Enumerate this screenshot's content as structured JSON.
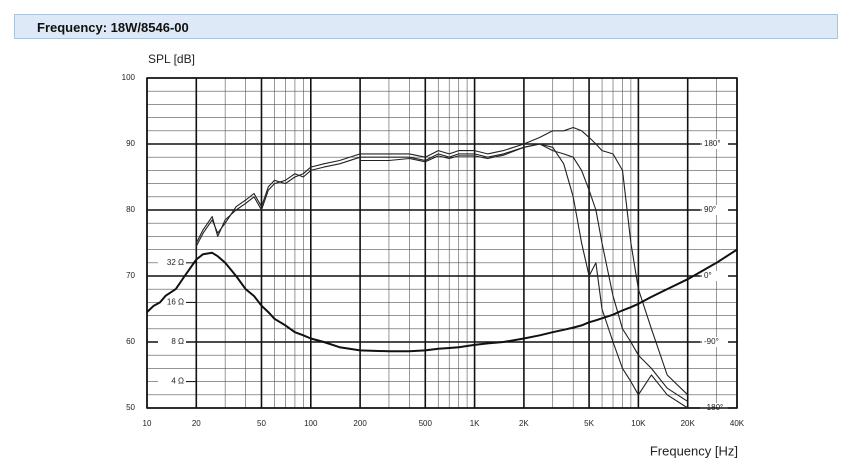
{
  "header": {
    "title": "Frequency: 18W/8546-00"
  },
  "chart_data": {
    "type": "line",
    "y_label": "SPL [dB]",
    "x_label": "Frequency [Hz]",
    "xlog": true,
    "grid": true,
    "xlim": [
      10,
      40000
    ],
    "xticks": [
      10,
      20,
      50,
      100,
      200,
      500,
      {
        "value": 1000,
        "label": "1K"
      },
      {
        "value": 2000,
        "label": "2K"
      },
      {
        "value": 5000,
        "label": "5K"
      },
      {
        "value": 10000,
        "label": "10K"
      },
      {
        "value": 20000,
        "label": "20K"
      },
      {
        "value": 40000,
        "label": "40K"
      }
    ],
    "ylim": [
      50,
      100
    ],
    "yticks": [
      50,
      60,
      70,
      80,
      90,
      100
    ],
    "y2log": true,
    "y2lim": [
      2.52,
      812
    ],
    "y2ticks": [
      {
        "value": 4,
        "label": "4 Ω"
      },
      {
        "value": 8,
        "label": "8 Ω"
      },
      {
        "value": 16,
        "label": "16 Ω"
      },
      {
        "value": 32,
        "label": "32 Ω"
      }
    ],
    "y3lim": [
      -180,
      270
    ],
    "y3ticks": [
      {
        "value": -180,
        "label": "-180°"
      },
      {
        "value": -90,
        "label": "-90°"
      },
      {
        "value": 0,
        "label": "0°"
      },
      {
        "value": 90,
        "label": "90°"
      },
      {
        "value": 180,
        "label": "180°"
      }
    ],
    "x": [
      10,
      11,
      12,
      13,
      15,
      17,
      20,
      22,
      25,
      27,
      30,
      35,
      40,
      45,
      50,
      55,
      60,
      70,
      80,
      90,
      100,
      120,
      150,
      200,
      300,
      400,
      500,
      600,
      700,
      800,
      1000,
      1200,
      1500,
      2000,
      2500,
      3000,
      3500,
      4000,
      4500,
      5000,
      5500,
      6000,
      7000,
      8000,
      9000,
      10000,
      12000,
      15000,
      20000,
      30000,
      40000
    ],
    "series": [
      {
        "color": "#222222",
        "values": [
          null,
          null,
          null,
          null,
          null,
          null,
          75,
          77,
          79,
          76,
          78.5,
          80,
          81,
          82,
          80,
          83,
          84,
          84.5,
          85.5,
          85,
          86,
          86.5,
          87,
          88,
          88,
          88,
          87.5,
          88.5,
          88,
          88.5,
          88.5,
          88,
          88.5,
          89.5,
          90,
          89.5,
          87,
          82,
          75,
          70,
          72,
          65,
          60,
          56,
          54,
          52,
          55,
          52,
          50,
          null,
          null
        ]
      },
      {
        "color": "#222222",
        "values": [
          null,
          null,
          null,
          null,
          null,
          null,
          74.5,
          76.5,
          78.5,
          76.5,
          78,
          80.5,
          81.5,
          82.5,
          80.5,
          83.5,
          84.5,
          84,
          85,
          85.5,
          86.5,
          87,
          87.5,
          88.5,
          88.5,
          88.5,
          88,
          89,
          88.5,
          89,
          89,
          88.5,
          89,
          90,
          91,
          92,
          92,
          92.5,
          92,
          91,
          90,
          89,
          88.5,
          86,
          75,
          68,
          62,
          55,
          52,
          null,
          null
        ]
      },
      {
        "color": "#222222",
        "values": [
          null,
          null,
          null,
          null,
          null,
          null,
          null,
          null,
          null,
          null,
          null,
          null,
          null,
          null,
          null,
          null,
          null,
          null,
          null,
          null,
          null,
          null,
          null,
          87.5,
          87.5,
          87.8,
          87.3,
          88.2,
          87.8,
          88.2,
          88.2,
          87.8,
          88.3,
          89.5,
          90,
          89,
          88.5,
          88,
          86,
          83,
          80,
          75,
          67,
          62,
          60,
          58,
          56,
          53,
          51,
          null,
          null
        ]
      },
      {
        "color": "#111111",
        "axis": "y2",
        "values": [
          13.5,
          15.1,
          16,
          18,
          20.2,
          25.4,
          33.9,
          37.2,
          38.1,
          35.9,
          32,
          25.4,
          20.2,
          17.9,
          15.1,
          13.5,
          12,
          10.7,
          9.5,
          9,
          8.5,
          8,
          7.3,
          6.9,
          6.8,
          6.8,
          6.9,
          7.1,
          7.2,
          7.3,
          7.6,
          7.8,
          8,
          8.5,
          9,
          9.5,
          9.9,
          10.3,
          10.7,
          11.3,
          11.7,
          12.1,
          12.9,
          13.9,
          14.7,
          15.6,
          17.6,
          20.2,
          24,
          32,
          40.3
        ]
      }
    ]
  }
}
